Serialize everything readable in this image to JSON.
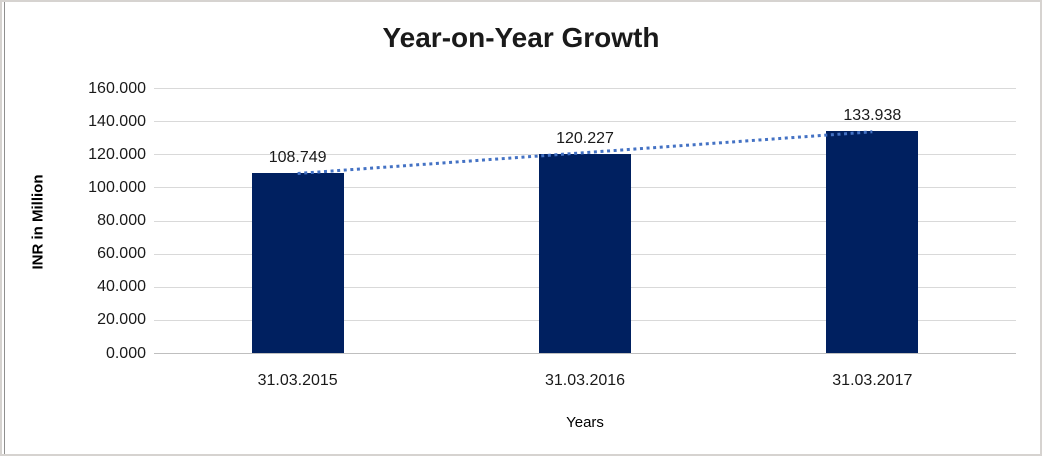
{
  "window": {
    "frame_border_color": "#d6d3d0",
    "inner_left_border_color": "#8f8f8f",
    "background_color": "#ffffff"
  },
  "chart_data": {
    "type": "bar",
    "title": "Year-on-Year Growth",
    "xlabel": "Years",
    "ylabel": "INR in Million",
    "categories": [
      "31.03.2015",
      "31.03.2016",
      "31.03.2017"
    ],
    "values": [
      108.749,
      120.227,
      133.938
    ],
    "data_labels": [
      "108.749",
      "120.227",
      "133.938"
    ],
    "ylim": [
      0,
      160
    ],
    "ytick_step": 20,
    "yticks_top_to_bottom": [
      "160.000",
      "140.000",
      "120.000",
      "100.000",
      "80.000",
      "60.000",
      "40.000",
      "20.000",
      "0.000"
    ],
    "grid": true,
    "legend_position": "none",
    "bar_color": "#002060",
    "gridline_color": "#d9d9d9",
    "axis_line_color": "#bfbfbf",
    "text_color": "#1a1a1a",
    "trendline": {
      "type": "linear",
      "style": "dotted",
      "color": "#4472c4"
    }
  }
}
